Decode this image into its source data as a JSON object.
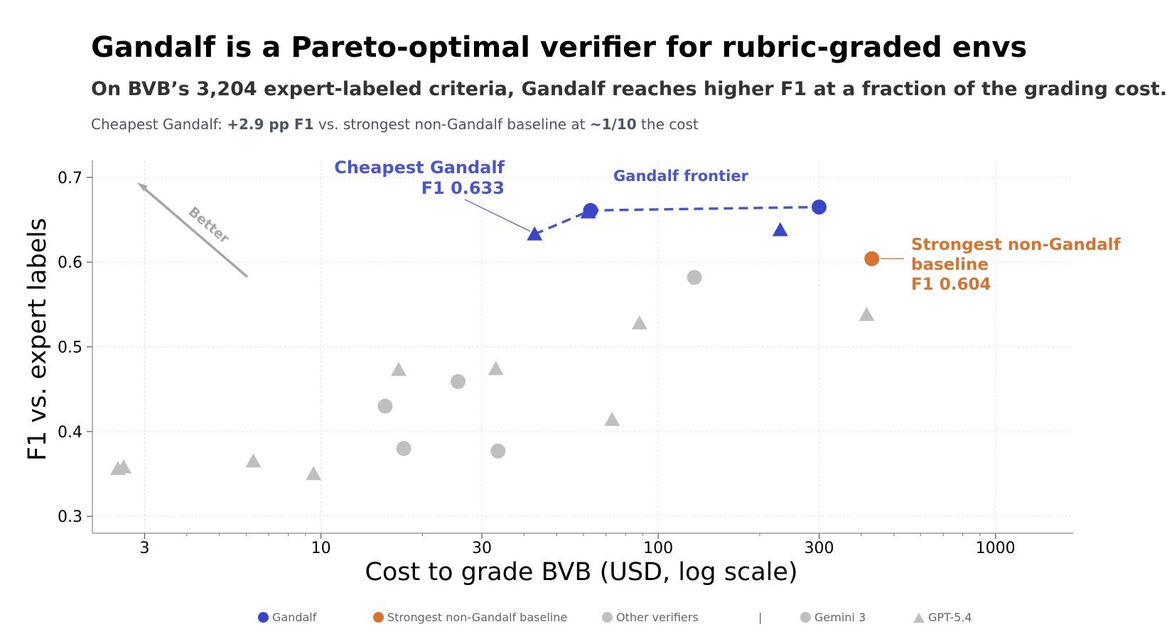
{
  "title": "Gandalf is a Pareto-optimal verifier for rubric-graded envs",
  "subtitle": "On BVB’s 3,204 expert-labeled criteria, Gandalf reaches higher F1 at a fraction of the grading cost.",
  "headline": {
    "prefix": "Cheapest Gandalf: ",
    "delta": "+2.9 pp F1",
    "middle": " vs. strongest non-Gandalf baseline at ",
    "ratio": "~1/10",
    "suffix": " the cost"
  },
  "colors": {
    "gandalf": "#3a45c9",
    "gandalf_text": "#4a56cf",
    "baseline": "#d8732f",
    "other": "#bfbfbf",
    "better": "#a6a6a6"
  },
  "chart_data": {
    "type": "scatter",
    "xlabel": "Cost to grade BVB (USD, log scale)",
    "ylabel": "F1 vs. expert labels",
    "xscale": "log",
    "xlim": [
      2.1,
      1700
    ],
    "ylim": [
      0.28,
      0.72
    ],
    "xticks": [
      3,
      10,
      30,
      100,
      300,
      1000
    ],
    "xtick_labels": [
      "3",
      "10",
      "30",
      "100",
      "300",
      "1000"
    ],
    "yticks": [
      0.3,
      0.4,
      0.5,
      0.6,
      0.7
    ],
    "ytick_labels": [
      "0.3",
      "0.4",
      "0.5",
      "0.6",
      "0.7"
    ],
    "grid": true,
    "series": [
      {
        "name": "Gandalf",
        "color": "#3a45c9",
        "points": [
          {
            "x": 43,
            "y": 0.633,
            "marker": "triangle"
          },
          {
            "x": 62,
            "y": 0.659,
            "marker": "triangle"
          },
          {
            "x": 63,
            "y": 0.661,
            "marker": "circle"
          },
          {
            "x": 230,
            "y": 0.638,
            "marker": "triangle"
          },
          {
            "x": 300,
            "y": 0.665,
            "marker": "circle"
          }
        ]
      },
      {
        "name": "Strongest non-Gandalf baseline",
        "color": "#d8732f",
        "points": [
          {
            "x": 430,
            "y": 0.604,
            "marker": "circle"
          }
        ]
      },
      {
        "name": "Other verifiers",
        "color": "#bfbfbf",
        "points": [
          {
            "x": 2.5,
            "y": 0.356,
            "marker": "triangle"
          },
          {
            "x": 2.6,
            "y": 0.358,
            "marker": "triangle"
          },
          {
            "x": 6.3,
            "y": 0.365,
            "marker": "triangle"
          },
          {
            "x": 9.5,
            "y": 0.35,
            "marker": "triangle"
          },
          {
            "x": 17,
            "y": 0.473,
            "marker": "triangle"
          },
          {
            "x": 33,
            "y": 0.474,
            "marker": "triangle"
          },
          {
            "x": 73,
            "y": 0.414,
            "marker": "triangle"
          },
          {
            "x": 88,
            "y": 0.528,
            "marker": "triangle"
          },
          {
            "x": 415,
            "y": 0.538,
            "marker": "triangle"
          },
          {
            "x": 15.5,
            "y": 0.43,
            "marker": "circle"
          },
          {
            "x": 17.6,
            "y": 0.38,
            "marker": "circle"
          },
          {
            "x": 25.5,
            "y": 0.459,
            "marker": "circle"
          },
          {
            "x": 33.5,
            "y": 0.377,
            "marker": "circle"
          },
          {
            "x": 128,
            "y": 0.582,
            "marker": "circle"
          }
        ]
      }
    ],
    "frontier": {
      "label": "Gandalf frontier",
      "points": [
        {
          "x": 43,
          "y": 0.633
        },
        {
          "x": 63,
          "y": 0.661
        },
        {
          "x": 300,
          "y": 0.665
        }
      ]
    },
    "annotations": {
      "cheapest": {
        "lines": [
          "Cheapest Gandalf",
          "F1 0.633"
        ],
        "target": {
          "x": 43,
          "y": 0.633
        }
      },
      "baseline": {
        "lines": [
          "Strongest non-Gandalf",
          "baseline",
          "F1 0.604"
        ],
        "target": {
          "x": 430,
          "y": 0.604
        }
      },
      "better": "Better"
    },
    "legend": {
      "placement": "bottom",
      "items": [
        "Gandalf",
        "Strongest non-Gandalf baseline",
        "Other verifiers",
        "|",
        "Gemini 3",
        "GPT-5.4"
      ]
    }
  }
}
